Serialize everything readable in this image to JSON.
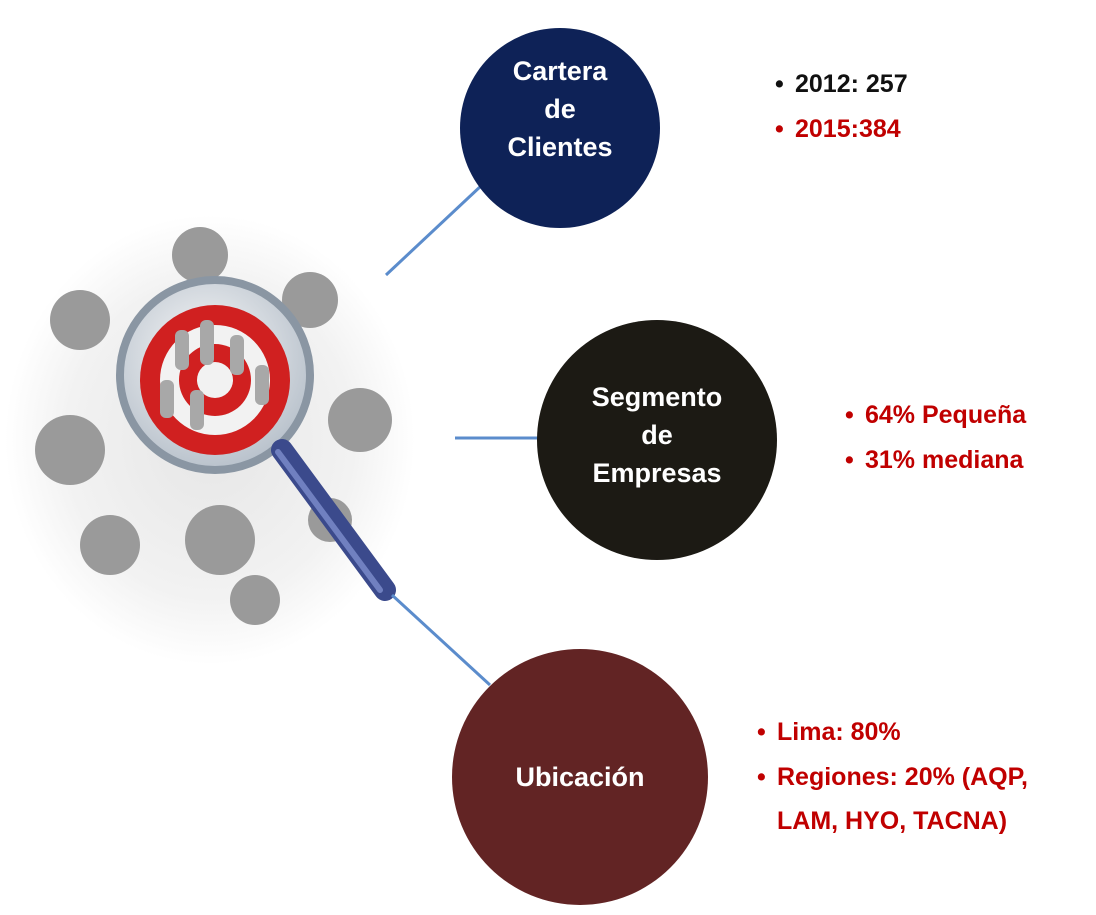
{
  "nodes": [
    {
      "label": [
        "Cartera",
        "de",
        "Clientes"
      ],
      "bullets": [
        "2012: 257",
        "2015:384"
      ]
    },
    {
      "label": [
        "Segmento",
        "de",
        "Empresas"
      ],
      "bullets": [
        "64% Pequeña",
        "31% mediana"
      ]
    },
    {
      "label": [
        "Ubicación"
      ],
      "bullets": [
        "Lima: 80%",
        "Regiones: 20% (AQP, LAM, HYO, TACNA)"
      ]
    }
  ]
}
